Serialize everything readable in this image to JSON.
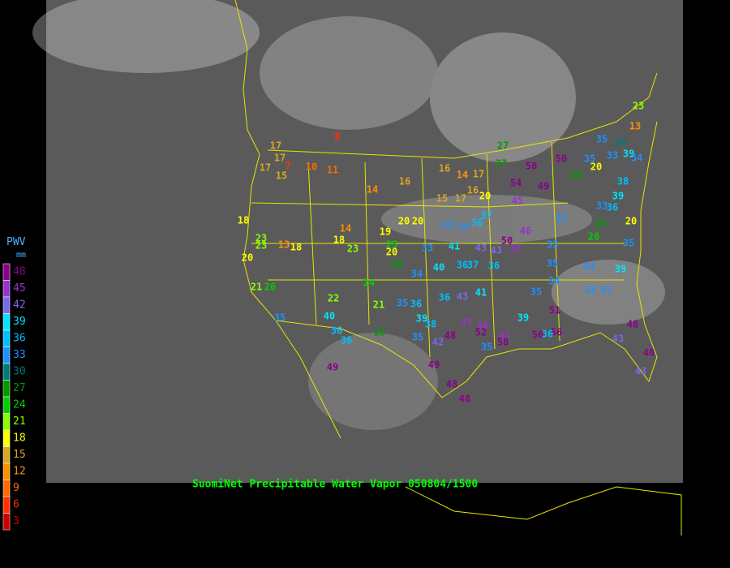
{
  "map": {
    "title": "SuomiNet Precipitable Water Vapor 050804/1500",
    "legend": {
      "title": "PWV",
      "unit": "mm",
      "ticks": [
        48,
        45,
        42,
        39,
        36,
        33,
        30,
        27,
        24,
        21,
        18,
        15,
        12,
        9,
        6,
        3
      ],
      "colors": [
        "#8a008a",
        "#9932cc",
        "#7b68ee",
        "#00e5ff",
        "#00bfff",
        "#1e90ff",
        "#007a7a",
        "#009900",
        "#00d000",
        "#88ff00",
        "#ffff00",
        "#daa520",
        "#ff9000",
        "#ff6a00",
        "#ff3000",
        "#cc0000"
      ]
    },
    "stations": [
      8,
      17,
      17,
      7,
      15,
      17,
      10,
      11,
      14,
      16,
      16,
      14,
      17,
      15,
      17,
      16,
      20,
      27,
      27,
      50,
      50,
      54,
      49,
      45,
      35,
      33,
      39,
      34,
      23,
      13,
      35,
      30,
      28,
      20,
      38,
      39,
      36,
      33,
      20,
      18,
      23,
      23,
      13,
      18,
      20,
      14,
      18,
      23,
      19,
      20,
      20,
      33,
      34,
      36,
      37,
      33,
      28,
      26,
      35,
      25,
      20,
      29,
      33,
      41,
      43,
      43,
      50,
      45,
      46,
      33,
      36,
      35,
      34,
      39,
      40,
      37,
      36,
      34,
      21,
      26,
      24,
      22,
      21,
      35,
      40,
      36,
      39,
      38,
      36,
      35,
      43,
      36,
      41,
      35,
      34,
      33,
      35,
      51,
      39,
      47,
      46,
      52,
      48,
      42,
      47,
      56,
      56,
      48,
      43,
      36,
      35,
      48,
      43,
      49,
      49,
      48,
      48,
      36,
      28,
      35,
      58
    ]
  }
}
